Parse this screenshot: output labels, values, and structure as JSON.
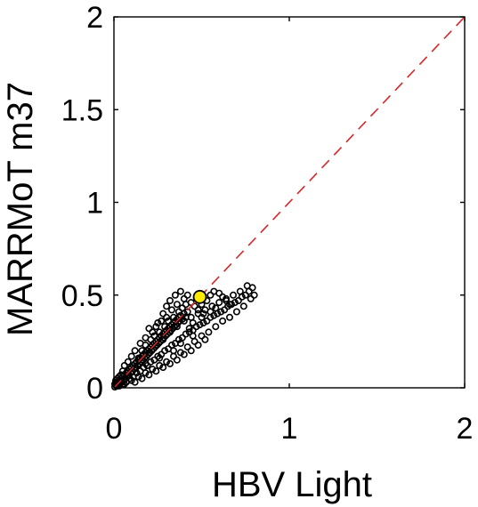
{
  "chart_data": {
    "type": "scatter",
    "title": "",
    "xlabel": "HBV Light",
    "ylabel": "MARRMoT m37",
    "xlim": [
      0,
      2
    ],
    "ylim": [
      0,
      2
    ],
    "xticks": [
      "0",
      "1",
      "2"
    ],
    "yticks": [
      "0",
      "0.5",
      "1",
      "1.5",
      "2"
    ],
    "grid": false,
    "legend": "none",
    "reference_line": {
      "from": [
        0,
        0
      ],
      "to": [
        2,
        2
      ],
      "color": "#d62728",
      "style": "dashed"
    },
    "highlight_point": {
      "x": 0.49,
      "y": 0.49,
      "color": "#ffeb00"
    },
    "marker_color": "#000000",
    "series": [
      {
        "values": [
          [
            0.005,
            0.005
          ],
          [
            0.01,
            0.02
          ],
          [
            0.015,
            0.01
          ],
          [
            0.02,
            0.03
          ],
          [
            0.025,
            0.02
          ],
          [
            0.03,
            0.04
          ],
          [
            0.035,
            0.025
          ],
          [
            0.04,
            0.05
          ],
          [
            0.045,
            0.03
          ],
          [
            0.05,
            0.06
          ],
          [
            0.055,
            0.04
          ],
          [
            0.06,
            0.07
          ],
          [
            0.065,
            0.05
          ],
          [
            0.07,
            0.08
          ],
          [
            0.075,
            0.06
          ],
          [
            0.08,
            0.09
          ],
          [
            0.085,
            0.07
          ],
          [
            0.09,
            0.1
          ],
          [
            0.095,
            0.08
          ],
          [
            0.1,
            0.11
          ],
          [
            0.105,
            0.09
          ],
          [
            0.11,
            0.12
          ],
          [
            0.115,
            0.1
          ],
          [
            0.12,
            0.13
          ],
          [
            0.125,
            0.11
          ],
          [
            0.13,
            0.14
          ],
          [
            0.135,
            0.12
          ],
          [
            0.14,
            0.15
          ],
          [
            0.145,
            0.13
          ],
          [
            0.15,
            0.16
          ],
          [
            0.155,
            0.14
          ],
          [
            0.16,
            0.17
          ],
          [
            0.165,
            0.15
          ],
          [
            0.17,
            0.18
          ],
          [
            0.175,
            0.16
          ],
          [
            0.18,
            0.19
          ],
          [
            0.185,
            0.17
          ],
          [
            0.19,
            0.2
          ],
          [
            0.195,
            0.18
          ],
          [
            0.2,
            0.21
          ],
          [
            0.205,
            0.19
          ],
          [
            0.21,
            0.22
          ],
          [
            0.215,
            0.2
          ],
          [
            0.22,
            0.23
          ],
          [
            0.225,
            0.21
          ],
          [
            0.23,
            0.24
          ],
          [
            0.235,
            0.22
          ],
          [
            0.24,
            0.25
          ],
          [
            0.245,
            0.23
          ],
          [
            0.25,
            0.26
          ],
          [
            0.255,
            0.24
          ],
          [
            0.26,
            0.27
          ],
          [
            0.265,
            0.25
          ],
          [
            0.27,
            0.28
          ],
          [
            0.275,
            0.26
          ],
          [
            0.28,
            0.29
          ],
          [
            0.285,
            0.27
          ],
          [
            0.29,
            0.3
          ],
          [
            0.295,
            0.28
          ],
          [
            0.3,
            0.31
          ],
          [
            0.305,
            0.29
          ],
          [
            0.31,
            0.32
          ],
          [
            0.315,
            0.3
          ],
          [
            0.32,
            0.33
          ],
          [
            0.325,
            0.31
          ],
          [
            0.33,
            0.34
          ],
          [
            0.335,
            0.32
          ],
          [
            0.34,
            0.35
          ],
          [
            0.345,
            0.33
          ],
          [
            0.35,
            0.36
          ],
          [
            0.355,
            0.34
          ],
          [
            0.36,
            0.37
          ],
          [
            0.365,
            0.35
          ],
          [
            0.37,
            0.38
          ],
          [
            0.375,
            0.36
          ],
          [
            0.38,
            0.39
          ],
          [
            0.39,
            0.37
          ],
          [
            0.4,
            0.4
          ],
          [
            0.41,
            0.38
          ],
          [
            0.42,
            0.41
          ],
          [
            0.03,
            0.01
          ],
          [
            0.05,
            0.02
          ],
          [
            0.07,
            0.03
          ],
          [
            0.09,
            0.05
          ],
          [
            0.11,
            0.06
          ],
          [
            0.13,
            0.08
          ],
          [
            0.15,
            0.09
          ],
          [
            0.17,
            0.11
          ],
          [
            0.19,
            0.12
          ],
          [
            0.21,
            0.14
          ],
          [
            0.23,
            0.15
          ],
          [
            0.25,
            0.17
          ],
          [
            0.27,
            0.18
          ],
          [
            0.29,
            0.2
          ],
          [
            0.31,
            0.21
          ],
          [
            0.33,
            0.23
          ],
          [
            0.35,
            0.24
          ],
          [
            0.37,
            0.26
          ],
          [
            0.39,
            0.27
          ],
          [
            0.41,
            0.29
          ],
          [
            0.43,
            0.3
          ],
          [
            0.45,
            0.31
          ],
          [
            0.47,
            0.33
          ],
          [
            0.49,
            0.34
          ],
          [
            0.51,
            0.35
          ],
          [
            0.53,
            0.36
          ],
          [
            0.55,
            0.38
          ],
          [
            0.57,
            0.39
          ],
          [
            0.59,
            0.4
          ],
          [
            0.61,
            0.41
          ],
          [
            0.63,
            0.42
          ],
          [
            0.65,
            0.44
          ],
          [
            0.67,
            0.45
          ],
          [
            0.69,
            0.46
          ],
          [
            0.71,
            0.47
          ],
          [
            0.73,
            0.49
          ],
          [
            0.75,
            0.5
          ],
          [
            0.77,
            0.52
          ],
          [
            0.79,
            0.54
          ],
          [
            0.76,
            0.55
          ],
          [
            0.72,
            0.52
          ],
          [
            0.68,
            0.5
          ],
          [
            0.64,
            0.48
          ],
          [
            0.6,
            0.46
          ],
          [
            0.56,
            0.44
          ],
          [
            0.52,
            0.42
          ],
          [
            0.48,
            0.4
          ],
          [
            0.44,
            0.38
          ],
          [
            0.4,
            0.36
          ],
          [
            0.36,
            0.33
          ],
          [
            0.32,
            0.3
          ],
          [
            0.28,
            0.26
          ],
          [
            0.24,
            0.23
          ],
          [
            0.2,
            0.19
          ],
          [
            0.16,
            0.15
          ],
          [
            0.12,
            0.11
          ],
          [
            0.08,
            0.08
          ],
          [
            0.04,
            0.04
          ],
          [
            0.02,
            0.01
          ],
          [
            0.01,
            0.03
          ],
          [
            0.06,
            0.02
          ],
          [
            0.1,
            0.04
          ],
          [
            0.14,
            0.06
          ],
          [
            0.18,
            0.08
          ],
          [
            0.22,
            0.1
          ],
          [
            0.26,
            0.12
          ],
          [
            0.3,
            0.14
          ],
          [
            0.34,
            0.17
          ],
          [
            0.38,
            0.19
          ],
          [
            0.42,
            0.22
          ],
          [
            0.46,
            0.25
          ],
          [
            0.5,
            0.28
          ],
          [
            0.54,
            0.3
          ],
          [
            0.58,
            0.33
          ],
          [
            0.62,
            0.36
          ],
          [
            0.66,
            0.38
          ],
          [
            0.7,
            0.41
          ],
          [
            0.74,
            0.44
          ],
          [
            0.78,
            0.48
          ],
          [
            0.8,
            0.5
          ],
          [
            0.2,
            0.32
          ],
          [
            0.25,
            0.35
          ],
          [
            0.28,
            0.4
          ],
          [
            0.3,
            0.44
          ],
          [
            0.32,
            0.47
          ],
          [
            0.35,
            0.5
          ],
          [
            0.38,
            0.52
          ],
          [
            0.4,
            0.48
          ],
          [
            0.42,
            0.5
          ],
          [
            0.36,
            0.45
          ],
          [
            0.33,
            0.42
          ],
          [
            0.3,
            0.38
          ],
          [
            0.27,
            0.36
          ],
          [
            0.24,
            0.33
          ],
          [
            0.22,
            0.3
          ],
          [
            0.18,
            0.27
          ],
          [
            0.15,
            0.24
          ],
          [
            0.12,
            0.2
          ],
          [
            0.1,
            0.17
          ],
          [
            0.08,
            0.14
          ],
          [
            0.06,
            0.12
          ],
          [
            0.05,
            0.09
          ],
          [
            0.04,
            0.07
          ],
          [
            0.03,
            0.06
          ],
          [
            0.02,
            0.05
          ],
          [
            0.01,
            0.04
          ],
          [
            0.005,
            0.02
          ],
          [
            0.5,
            0.45
          ],
          [
            0.53,
            0.47
          ],
          [
            0.55,
            0.5
          ],
          [
            0.57,
            0.52
          ],
          [
            0.6,
            0.51
          ],
          [
            0.62,
            0.49
          ],
          [
            0.64,
            0.47
          ],
          [
            0.66,
            0.45
          ],
          [
            0.58,
            0.43
          ],
          [
            0.55,
            0.41
          ],
          [
            0.5,
            0.38
          ],
          [
            0.45,
            0.35
          ],
          [
            0.43,
            0.32
          ],
          [
            0.12,
            0.03
          ],
          [
            0.16,
            0.05
          ],
          [
            0.2,
            0.07
          ],
          [
            0.24,
            0.09
          ],
          [
            0.28,
            0.11
          ],
          [
            0.32,
            0.13
          ],
          [
            0.36,
            0.15
          ],
          [
            0.4,
            0.18
          ],
          [
            0.44,
            0.2
          ],
          [
            0.48,
            0.23
          ],
          [
            0.52,
            0.26
          ],
          [
            0.45,
            0.28
          ],
          [
            0.38,
            0.24
          ],
          [
            0.34,
            0.2
          ],
          [
            0.26,
            0.16
          ],
          [
            0.18,
            0.13
          ],
          [
            0.14,
            0.16
          ],
          [
            0.16,
            0.2
          ],
          [
            0.18,
            0.23
          ],
          [
            0.21,
            0.26
          ],
          [
            0.23,
            0.28
          ],
          [
            0.26,
            0.3
          ],
          [
            0.29,
            0.33
          ],
          [
            0.31,
            0.36
          ],
          [
            0.34,
            0.38
          ],
          [
            0.37,
            0.41
          ],
          [
            0.39,
            0.43
          ],
          [
            0.41,
            0.45
          ],
          [
            0.44,
            0.46
          ],
          [
            0.46,
            0.44
          ],
          [
            0.48,
            0.42
          ],
          [
            0.51,
            0.4
          ]
        ]
      }
    ]
  }
}
